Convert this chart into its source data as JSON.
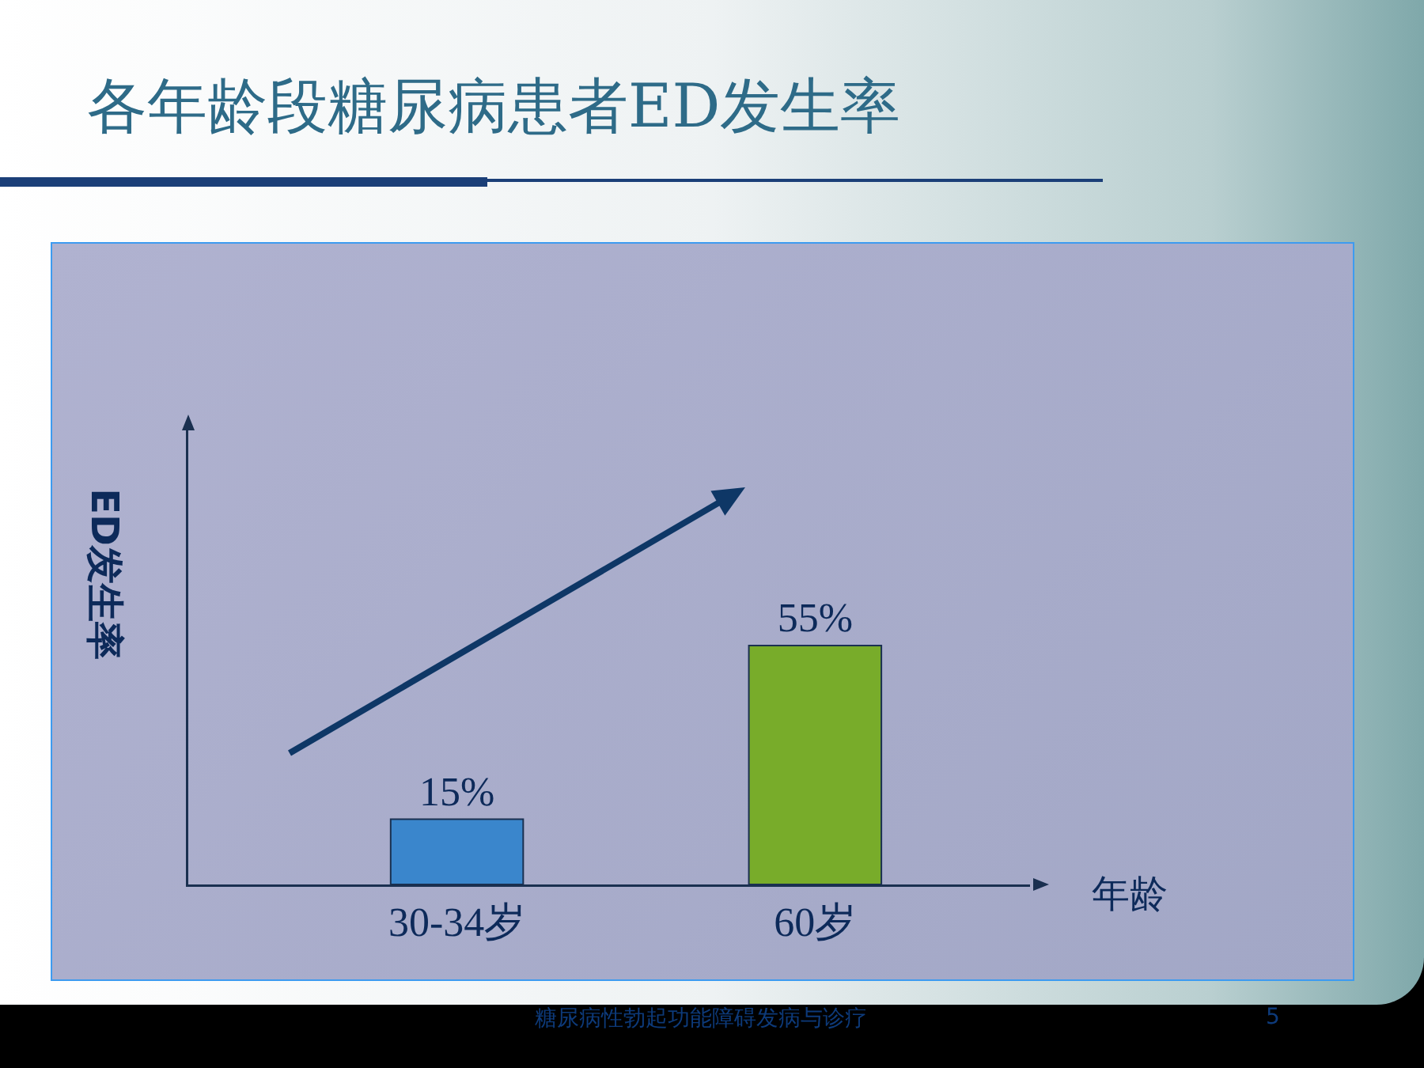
{
  "chart_data": {
    "type": "bar",
    "title": "各年龄段糖尿病患者ED发生率",
    "xlabel": "年龄",
    "ylabel": "ED发生率",
    "categories": [
      "30-34岁",
      "60岁"
    ],
    "values": [
      15,
      55
    ],
    "colors": [
      "#3a86cc",
      "#78ac2a"
    ],
    "value_labels": [
      "15%",
      "55%"
    ],
    "grid": false,
    "annotations": [
      "糖尿病性勃起功能障碍发病与诊疗",
      "5"
    ]
  }
}
